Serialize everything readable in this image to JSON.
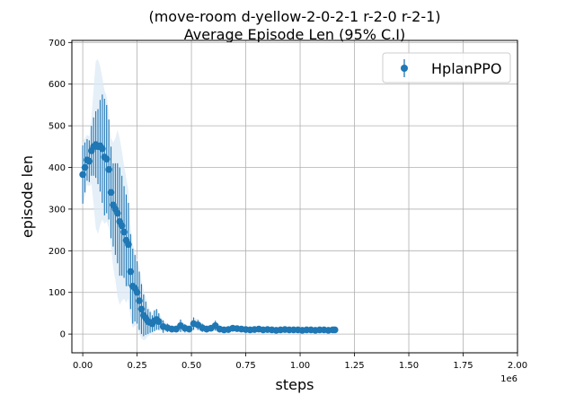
{
  "chart_data": {
    "type": "scatter",
    "title_line1": "(move-room d-yellow-2-0-2-1 r-2-0 r-2-1)",
    "title_line2": "Average Episode Len (95% C.I)",
    "xlabel": "steps",
    "ylabel": "episode len",
    "x_offset_label": "1e6",
    "x_scale": 1000000,
    "xlim": [
      -0.05,
      2.0
    ],
    "ylim": [
      -45,
      705
    ],
    "xticks": [
      0.0,
      0.25,
      0.5,
      0.75,
      1.0,
      1.25,
      1.5,
      1.75,
      2.0
    ],
    "xtick_labels": [
      "0.00",
      "0.25",
      "0.50",
      "0.75",
      "1.00",
      "1.25",
      "1.50",
      "1.75",
      "2.00"
    ],
    "yticks": [
      0,
      100,
      200,
      300,
      400,
      500,
      600,
      700
    ],
    "ytick_labels": [
      "0",
      "100",
      "200",
      "300",
      "400",
      "500",
      "600",
      "700"
    ],
    "grid": true,
    "legend_position": "top-right",
    "colors": {
      "series": "#1f77b4",
      "band": "#dce9f6",
      "grid": "#b0b0b0"
    },
    "series": [
      {
        "name": "HplanPPO",
        "x": [
          0.0,
          0.01,
          0.02,
          0.03,
          0.04,
          0.05,
          0.06,
          0.07,
          0.08,
          0.09,
          0.1,
          0.11,
          0.12,
          0.13,
          0.14,
          0.15,
          0.16,
          0.17,
          0.18,
          0.19,
          0.2,
          0.21,
          0.22,
          0.23,
          0.24,
          0.25,
          0.26,
          0.27,
          0.28,
          0.29,
          0.3,
          0.31,
          0.32,
          0.33,
          0.34,
          0.35,
          0.37,
          0.39,
          0.41,
          0.43,
          0.45,
          0.47,
          0.49,
          0.51,
          0.53,
          0.55,
          0.57,
          0.59,
          0.61,
          0.63,
          0.65,
          0.67,
          0.69,
          0.71,
          0.73,
          0.75,
          0.77,
          0.79,
          0.81,
          0.83,
          0.85,
          0.87,
          0.89,
          0.91,
          0.93,
          0.95,
          0.97,
          0.99,
          1.01,
          1.03,
          1.05,
          1.07,
          1.09,
          1.11,
          1.13,
          1.15,
          1.16
        ],
        "y": [
          383,
          400,
          418,
          415,
          440,
          450,
          455,
          450,
          452,
          445,
          425,
          420,
          395,
          340,
          310,
          300,
          290,
          270,
          260,
          245,
          225,
          215,
          150,
          115,
          110,
          100,
          80,
          60,
          45,
          38,
          30,
          28,
          25,
          32,
          35,
          30,
          18,
          15,
          12,
          12,
          20,
          14,
          12,
          25,
          22,
          15,
          12,
          14,
          20,
          12,
          10,
          11,
          14,
          13,
          12,
          11,
          10,
          11,
          12,
          10,
          11,
          10,
          9,
          10,
          11,
          10,
          10,
          10,
          9,
          10,
          10,
          9,
          10,
          10,
          9,
          10,
          10
        ],
        "err": [
          70,
          60,
          50,
          50,
          60,
          70,
          80,
          90,
          110,
          130,
          140,
          130,
          120,
          110,
          100,
          110,
          120,
          130,
          120,
          110,
          110,
          100,
          90,
          90,
          80,
          75,
          70,
          60,
          50,
          40,
          30,
          25,
          20,
          25,
          25,
          20,
          15,
          10,
          8,
          8,
          15,
          10,
          8,
          15,
          12,
          10,
          8,
          8,
          12,
          8,
          6,
          6,
          8,
          6,
          6,
          5,
          5,
          5,
          5,
          4,
          4,
          4,
          4,
          4,
          4,
          4,
          4,
          4,
          4,
          4,
          4,
          4,
          4,
          4,
          4,
          4,
          4
        ],
        "band": [
          80,
          70,
          60,
          60,
          80,
          140,
          200,
          210,
          190,
          170,
          160,
          150,
          140,
          130,
          150,
          170,
          200,
          200,
          180,
          160,
          150,
          130,
          110,
          100,
          90,
          80,
          80,
          70,
          60,
          50,
          35,
          30,
          25,
          25,
          25,
          20,
          15,
          10,
          8,
          8,
          15,
          10,
          8,
          15,
          12,
          10,
          8,
          8,
          12,
          8,
          6,
          6,
          8,
          6,
          6,
          5,
          5,
          5,
          5,
          4,
          4,
          4,
          4,
          4,
          4,
          4,
          4,
          4,
          4,
          4,
          4,
          4,
          4,
          4,
          4,
          4,
          4
        ]
      }
    ]
  }
}
